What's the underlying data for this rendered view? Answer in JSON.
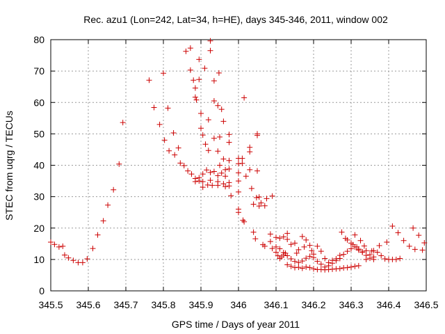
{
  "chart_data": {
    "type": "scatter",
    "title": "Rec. azu1 (Lon=242, Lat=34, h=HE), days 345-346, 2011, window 002",
    "xlabel": "GPS time / Days of year 2011",
    "ylabel": "STEC from uqrg / TECUs",
    "xlim": [
      345.5,
      346.5
    ],
    "ylim": [
      0,
      80
    ],
    "grid": true,
    "marker": "+",
    "color": "#cc0000",
    "x_ticks": [
      345.5,
      345.6,
      345.7,
      345.8,
      345.9,
      346.0,
      346.1,
      346.2,
      346.3,
      346.4,
      346.5
    ],
    "x_tick_labels": [
      "345.5",
      "345.6",
      "345.7",
      "345.8",
      "345.9",
      "346",
      "346.1",
      "346.2",
      "346.3",
      "346.4",
      "346.5"
    ],
    "y_ticks": [
      0,
      10,
      20,
      30,
      40,
      50,
      60,
      70,
      80
    ],
    "y_tick_labels": [
      "0",
      "10",
      "20",
      "30",
      "40",
      "50",
      "60",
      "70",
      "80"
    ],
    "points": [
      [
        345.5,
        15.5
      ],
      [
        345.51,
        14.8
      ],
      [
        345.522,
        14.0
      ],
      [
        345.532,
        14.2
      ],
      [
        345.537,
        11.4
      ],
      [
        345.547,
        10.5
      ],
      [
        345.56,
        9.7
      ],
      [
        345.573,
        9.0
      ],
      [
        345.585,
        9.0
      ],
      [
        345.597,
        10.2
      ],
      [
        345.612,
        13.5
      ],
      [
        345.625,
        17.8
      ],
      [
        345.64,
        22.3
      ],
      [
        345.652,
        27.3
      ],
      [
        345.667,
        32.2
      ],
      [
        345.682,
        40.4
      ],
      [
        345.692,
        53.6
      ],
      [
        345.762,
        67.1
      ],
      [
        345.775,
        58.4
      ],
      [
        345.79,
        53.0
      ],
      [
        345.8,
        69.3
      ],
      [
        345.803,
        48.0
      ],
      [
        345.812,
        58.2
      ],
      [
        345.815,
        44.6
      ],
      [
        345.827,
        50.3
      ],
      [
        345.83,
        43.3
      ],
      [
        345.84,
        45.5
      ],
      [
        345.845,
        40.7
      ],
      [
        345.855,
        39.9
      ],
      [
        345.865,
        38.2
      ],
      [
        345.875,
        37.2
      ],
      [
        345.885,
        35.8
      ],
      [
        345.895,
        35.0
      ],
      [
        345.905,
        34.8
      ],
      [
        345.918,
        33.7
      ],
      [
        345.93,
        33.6
      ],
      [
        345.945,
        33.6
      ],
      [
        345.96,
        34.1
      ],
      [
        345.975,
        34.5
      ],
      [
        345.86,
        76.3
      ],
      [
        345.872,
        77.3
      ],
      [
        345.872,
        70.3
      ],
      [
        345.88,
        67.1
      ],
      [
        345.885,
        64.6
      ],
      [
        345.885,
        61.7
      ],
      [
        345.888,
        60.8
      ],
      [
        345.895,
        67.3
      ],
      [
        345.895,
        73.7
      ],
      [
        345.9,
        51.8
      ],
      [
        345.9,
        56.5
      ],
      [
        345.905,
        49.6
      ],
      [
        345.91,
        70.9
      ],
      [
        345.912,
        46.7
      ],
      [
        345.92,
        44.7
      ],
      [
        345.92,
        54.5
      ],
      [
        345.925,
        76.5
      ],
      [
        345.925,
        79.6
      ],
      [
        345.935,
        48.6
      ],
      [
        345.935,
        60.5
      ],
      [
        345.935,
        66.9
      ],
      [
        345.945,
        44.5
      ],
      [
        345.945,
        59.0
      ],
      [
        345.948,
        69.4
      ],
      [
        345.95,
        49.0
      ],
      [
        345.95,
        40.0
      ],
      [
        345.955,
        57.8
      ],
      [
        345.96,
        42.0
      ],
      [
        345.96,
        54.0
      ],
      [
        345.965,
        38.6
      ],
      [
        345.975,
        47.3
      ],
      [
        345.975,
        49.8
      ],
      [
        345.975,
        41.5
      ],
      [
        345.975,
        38.8
      ],
      [
        345.98,
        30.3
      ],
      [
        345.895,
        36.0
      ],
      [
        345.905,
        37.2
      ],
      [
        345.915,
        38.5
      ],
      [
        345.925,
        37.7
      ],
      [
        345.935,
        38.0
      ],
      [
        345.945,
        36.7
      ],
      [
        345.955,
        37.5
      ],
      [
        345.965,
        36.5
      ],
      [
        345.885,
        34.8
      ],
      [
        345.905,
        33.0
      ],
      [
        345.925,
        35.2
      ],
      [
        345.945,
        34.8
      ],
      [
        345.965,
        33.2
      ],
      [
        345.975,
        33.4
      ],
      [
        346.0,
        42.2
      ],
      [
        346.0,
        40.5
      ],
      [
        346.0,
        37.6
      ],
      [
        346.0,
        35.0
      ],
      [
        346.0,
        31.5
      ],
      [
        346.0,
        26.0
      ],
      [
        346.0,
        25.0
      ],
      [
        346.01,
        42.2
      ],
      [
        346.01,
        40.6
      ],
      [
        346.015,
        61.5
      ],
      [
        346.012,
        22.5
      ],
      [
        346.015,
        22.0
      ],
      [
        346.02,
        36.5
      ],
      [
        346.03,
        44.3
      ],
      [
        346.03,
        45.7
      ],
      [
        346.03,
        38.6
      ],
      [
        346.035,
        32.6
      ],
      [
        346.04,
        27.6
      ],
      [
        346.048,
        29.7
      ],
      [
        346.05,
        49.5
      ],
      [
        346.05,
        50.0
      ],
      [
        346.05,
        38.2
      ],
      [
        346.055,
        29.9
      ],
      [
        346.055,
        27.0
      ],
      [
        346.04,
        18.7
      ],
      [
        346.045,
        16.6
      ],
      [
        346.06,
        28.0
      ],
      [
        346.07,
        27.1
      ],
      [
        346.065,
        14.7
      ],
      [
        346.07,
        14.2
      ],
      [
        346.075,
        29.4
      ],
      [
        346.085,
        15.7
      ],
      [
        346.09,
        30.2
      ],
      [
        346.085,
        18.1
      ],
      [
        346.09,
        13.5
      ],
      [
        346.1,
        12.3
      ],
      [
        346.105,
        11.2
      ],
      [
        346.11,
        10.3
      ],
      [
        346.115,
        10.8
      ],
      [
        346.12,
        11.4
      ],
      [
        346.125,
        12.0
      ],
      [
        346.13,
        8.3
      ],
      [
        346.14,
        7.8
      ],
      [
        346.15,
        7.4
      ],
      [
        346.16,
        7.5
      ],
      [
        346.17,
        7.2
      ],
      [
        346.18,
        7.6
      ],
      [
        346.19,
        7.4
      ],
      [
        346.2,
        7.0
      ],
      [
        346.21,
        6.8
      ],
      [
        346.22,
        6.8
      ],
      [
        346.23,
        6.7
      ],
      [
        346.24,
        6.8
      ],
      [
        346.25,
        6.9
      ],
      [
        346.26,
        7.0
      ],
      [
        346.27,
        7.1
      ],
      [
        346.28,
        7.3
      ],
      [
        346.29,
        7.4
      ],
      [
        346.3,
        7.6
      ],
      [
        346.31,
        7.8
      ],
      [
        346.32,
        8.0
      ],
      [
        346.1,
        17.0
      ],
      [
        346.11,
        16.8
      ],
      [
        346.12,
        17.2
      ],
      [
        346.13,
        18.3
      ],
      [
        346.13,
        16.4
      ],
      [
        346.14,
        14.8
      ],
      [
        346.15,
        15.2
      ],
      [
        346.155,
        12.0
      ],
      [
        346.16,
        13.1
      ],
      [
        346.17,
        17.3
      ],
      [
        346.175,
        14.0
      ],
      [
        346.18,
        16.2
      ],
      [
        346.19,
        14.5
      ],
      [
        346.195,
        12.8
      ],
      [
        346.2,
        11.7
      ],
      [
        346.21,
        14.2
      ],
      [
        346.22,
        12.6
      ],
      [
        346.23,
        10.3
      ],
      [
        346.24,
        9.0
      ],
      [
        346.25,
        9.7
      ],
      [
        346.26,
        10.2
      ],
      [
        346.27,
        11.3
      ],
      [
        346.275,
        18.7
      ],
      [
        346.285,
        16.7
      ],
      [
        346.29,
        16.2
      ],
      [
        346.3,
        15.2
      ],
      [
        346.305,
        14.7
      ],
      [
        346.31,
        17.8
      ],
      [
        346.315,
        14.0
      ],
      [
        346.32,
        13.0
      ],
      [
        346.325,
        16.0
      ],
      [
        346.33,
        12.4
      ],
      [
        346.335,
        14.3
      ],
      [
        346.34,
        12.8
      ],
      [
        346.35,
        11.5
      ],
      [
        346.355,
        12.7
      ],
      [
        346.36,
        10.8
      ],
      [
        346.1,
        14.0
      ],
      [
        346.11,
        13.4
      ],
      [
        346.12,
        12.2
      ],
      [
        346.13,
        11.2
      ],
      [
        346.14,
        10.2
      ],
      [
        346.15,
        9.4
      ],
      [
        346.16,
        9.0
      ],
      [
        346.17,
        9.5
      ],
      [
        346.18,
        10.4
      ],
      [
        346.19,
        11.0
      ],
      [
        346.2,
        10.6
      ],
      [
        346.21,
        9.4
      ],
      [
        346.22,
        8.5
      ],
      [
        346.23,
        7.6
      ],
      [
        346.24,
        8.0
      ],
      [
        346.25,
        8.8
      ],
      [
        346.26,
        9.6
      ],
      [
        346.27,
        10.3
      ],
      [
        346.28,
        11.6
      ],
      [
        346.29,
        12.6
      ],
      [
        346.3,
        13.4
      ],
      [
        346.31,
        14.0
      ],
      [
        346.32,
        13.3
      ],
      [
        346.33,
        12.3
      ],
      [
        346.34,
        11.3
      ],
      [
        346.35,
        10.4
      ],
      [
        346.36,
        10.0
      ],
      [
        346.34,
        10.0
      ],
      [
        346.36,
        12.8
      ],
      [
        346.37,
        12.3
      ],
      [
        346.38,
        11.2
      ],
      [
        346.39,
        10.2
      ],
      [
        346.4,
        10.0
      ],
      [
        346.41,
        10.0
      ],
      [
        346.42,
        10.0
      ],
      [
        346.43,
        10.3
      ],
      [
        346.375,
        14.4
      ],
      [
        346.395,
        15.5
      ],
      [
        346.41,
        20.6
      ],
      [
        346.425,
        18.5
      ],
      [
        346.44,
        16.0
      ],
      [
        346.455,
        14.2
      ],
      [
        346.465,
        20.0
      ],
      [
        346.47,
        13.2
      ],
      [
        346.48,
        17.7
      ],
      [
        346.49,
        13.0
      ],
      [
        346.495,
        15.3
      ]
    ]
  }
}
